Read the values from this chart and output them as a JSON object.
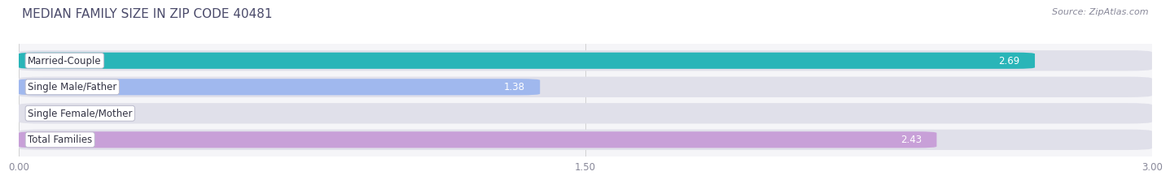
{
  "title": "MEDIAN FAMILY SIZE IN ZIP CODE 40481",
  "source": "Source: ZipAtlas.com",
  "categories": [
    "Married-Couple",
    "Single Male/Father",
    "Single Female/Mother",
    "Total Families"
  ],
  "values": [
    2.69,
    1.38,
    0.0,
    2.43
  ],
  "bar_colors": [
    "#29b5b8",
    "#a0b8ee",
    "#f0a0b8",
    "#c8a0d8"
  ],
  "bar_bg_color": "#e0e0ea",
  "xlim": [
    0,
    3.0
  ],
  "xticks": [
    0.0,
    1.5,
    3.0
  ],
  "xtick_labels": [
    "0.00",
    "1.50",
    "3.00"
  ],
  "label_bg_color": "#ffffff",
  "label_border_color": "#bbbbcc",
  "title_color": "#4a4a6a",
  "source_color": "#888899",
  "value_label_color_inside": "#ffffff",
  "value_label_color_outside": "#777788",
  "title_fontsize": 11,
  "source_fontsize": 8,
  "bar_label_fontsize": 8.5,
  "value_fontsize": 8.5,
  "xtick_fontsize": 8.5,
  "fig_bg_color": "#ffffff",
  "axes_bg_color": "#f5f5f8",
  "inside_threshold": 0.5
}
